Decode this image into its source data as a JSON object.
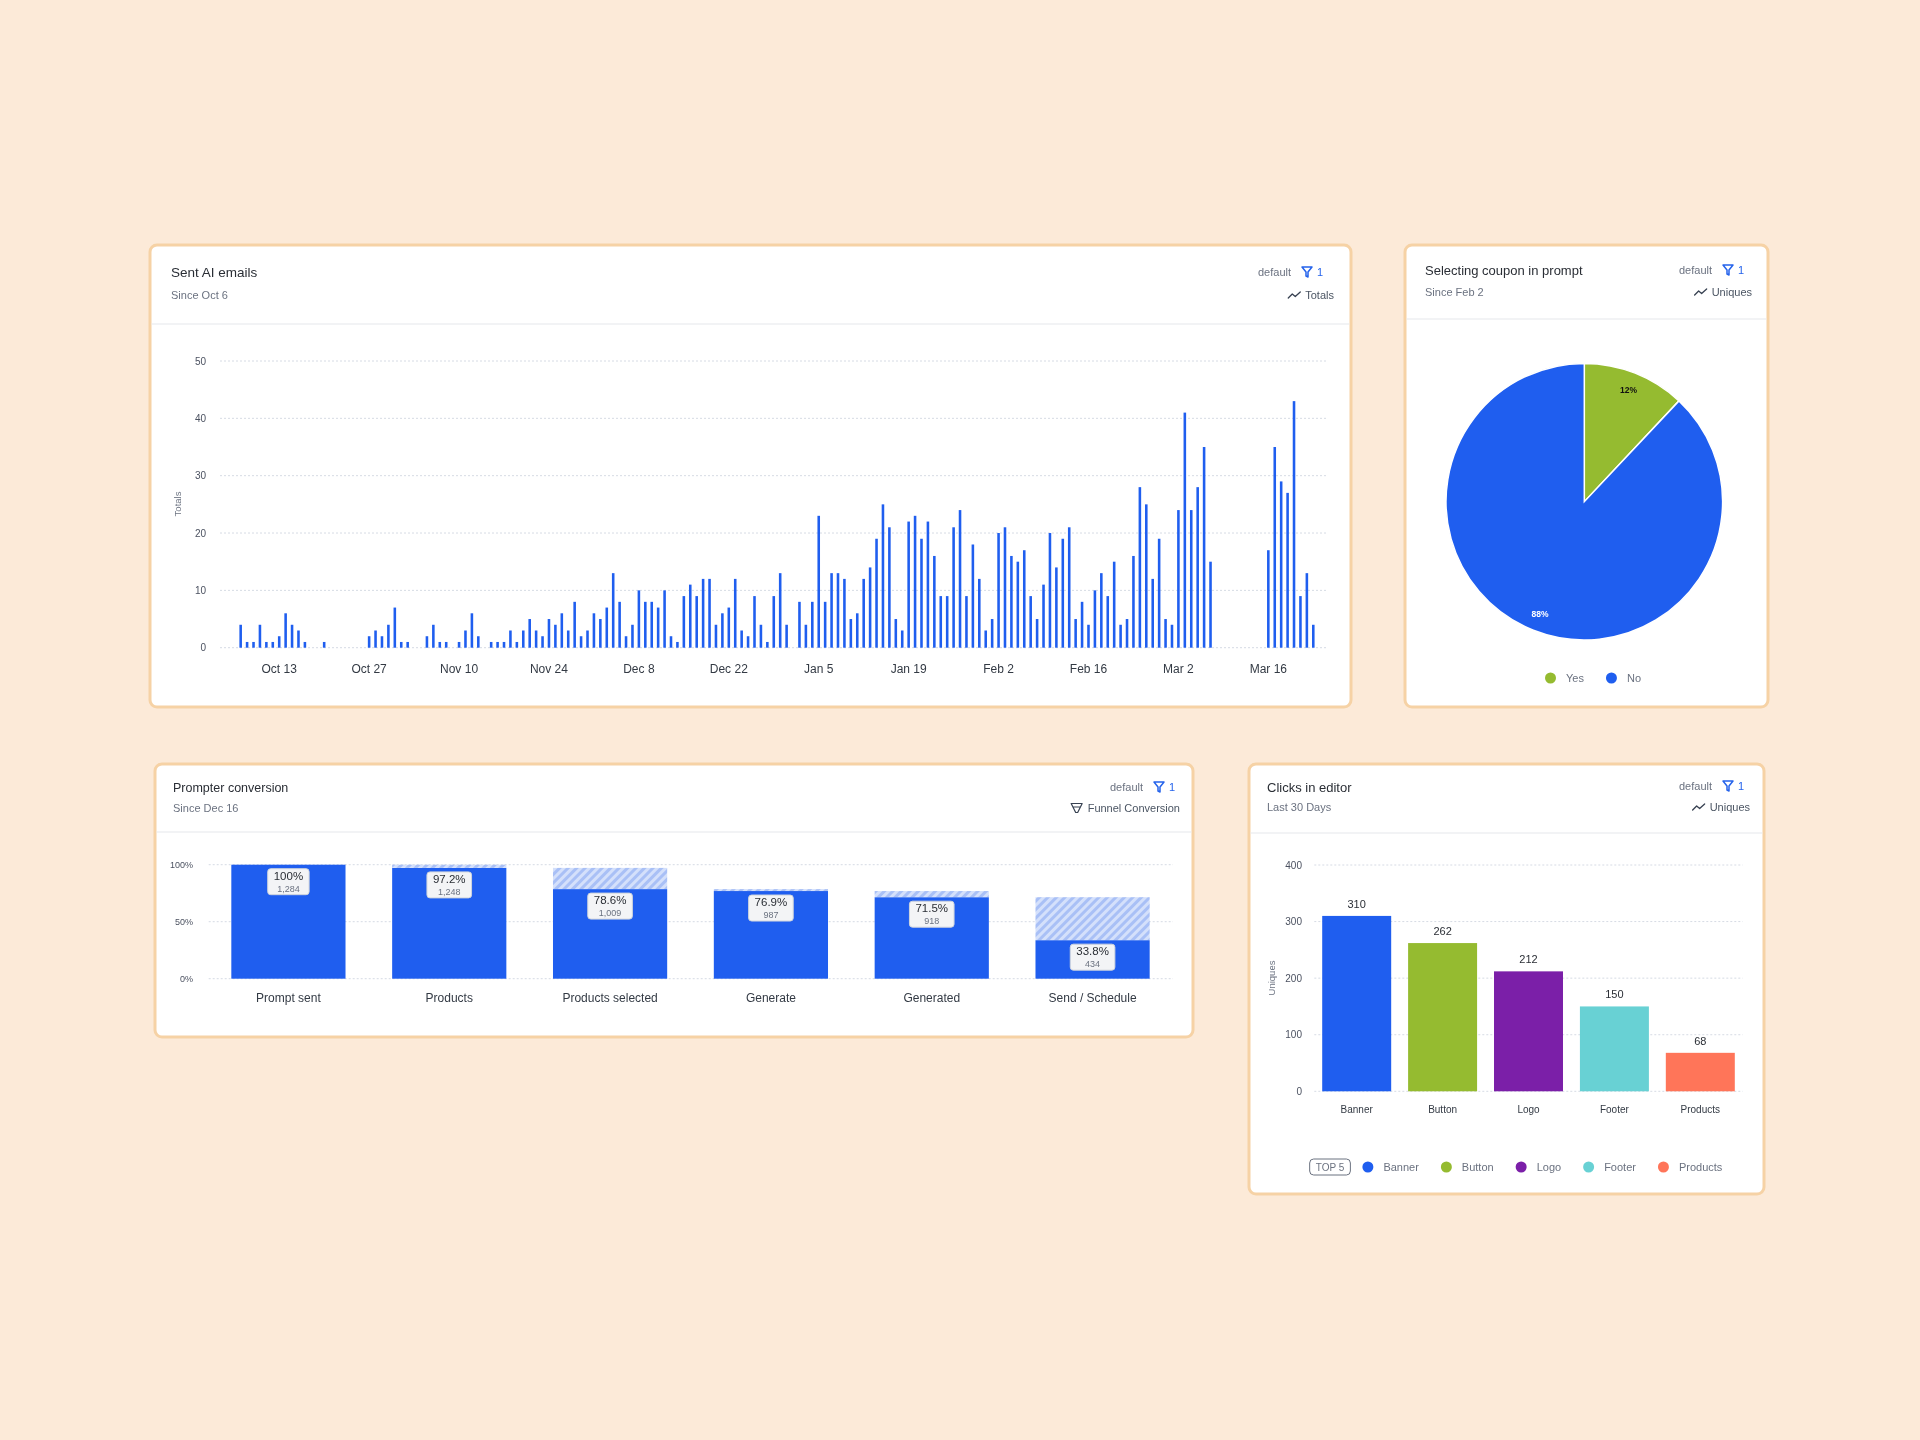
{
  "chart_data": [
    {
      "type": "bar",
      "title": "Sent AI emails",
      "subtitle": "Since Oct 6",
      "ylabel": "Totals",
      "annotations": [
        "default",
        "1",
        "Totals"
      ],
      "categories": [
        null,
        null,
        null,
        null,
        null,
        null,
        "Oct 13",
        null,
        null,
        null,
        null,
        null,
        null,
        null,
        null,
        null,
        null,
        null,
        null,
        null,
        "Oct 27",
        null,
        null,
        null,
        null,
        null,
        null,
        null,
        null,
        null,
        null,
        null,
        null,
        null,
        "Nov 10",
        null,
        null,
        null,
        null,
        null,
        null,
        null,
        null,
        null,
        null,
        null,
        null,
        null,
        "Nov 24",
        null,
        null,
        null,
        null,
        null,
        null,
        null,
        null,
        null,
        null,
        null,
        null,
        null,
        "Dec 8",
        null,
        null,
        null,
        null,
        null,
        null,
        null,
        null,
        null,
        null,
        null,
        null,
        null,
        "Dec 22",
        null,
        null,
        null,
        null,
        null,
        null,
        null,
        null,
        null,
        null,
        null,
        null,
        null,
        "Jan 5",
        null,
        null,
        null,
        null,
        null,
        null,
        null,
        null,
        null,
        null,
        null,
        null,
        null,
        "Jan 19",
        null,
        null,
        null,
        null,
        null,
        null,
        null,
        null,
        null,
        null,
        null,
        null,
        null,
        "Feb 2",
        null,
        null,
        null,
        null,
        null,
        null,
        null,
        null,
        null,
        null,
        null,
        null,
        null,
        "Feb 16",
        null,
        null,
        null,
        null,
        null,
        null,
        null,
        null,
        null,
        null,
        null,
        null,
        null,
        "Mar 2",
        null,
        null,
        null,
        null,
        null,
        null,
        null,
        null,
        null,
        null,
        null,
        null,
        null,
        "Mar 16",
        null,
        null,
        null,
        null,
        null,
        null,
        null
      ],
      "values": [
        4,
        1,
        1,
        4,
        1,
        1,
        2,
        6,
        4,
        3,
        1,
        null,
        null,
        1,
        null,
        null,
        null,
        null,
        null,
        null,
        2,
        3,
        2,
        4,
        7,
        1,
        1,
        null,
        null,
        2,
        4,
        1,
        1,
        null,
        1,
        3,
        6,
        2,
        null,
        1,
        1,
        1,
        3,
        1,
        3,
        5,
        3,
        2,
        5,
        4,
        6,
        3,
        8,
        2,
        3,
        6,
        5,
        7,
        13,
        8,
        2,
        4,
        10,
        8,
        8,
        7,
        10,
        2,
        1,
        9,
        11,
        9,
        12,
        12,
        4,
        6,
        7,
        12,
        3,
        2,
        9,
        4,
        1,
        9,
        13,
        4,
        null,
        8,
        4,
        8,
        23,
        8,
        13,
        13,
        12,
        5,
        6,
        12,
        14,
        19,
        25,
        21,
        5,
        3,
        22,
        23,
        19,
        22,
        16,
        9,
        9,
        21,
        24,
        9,
        18,
        12,
        3,
        5,
        20,
        21,
        16,
        15,
        17,
        9,
        5,
        11,
        20,
        14,
        19,
        21,
        5,
        8,
        4,
        10,
        13,
        9,
        15,
        4,
        5,
        16,
        28,
        25,
        12,
        19,
        5,
        4,
        24,
        41,
        24,
        28,
        35,
        15,
        null,
        null,
        null,
        null,
        null,
        null,
        null,
        null,
        17,
        35,
        29,
        27,
        43,
        9,
        13,
        4
      ],
      "color": "#1f5eef",
      "ylim": [
        0,
        50
      ],
      "yticks": [
        0,
        10,
        20,
        30,
        40,
        50
      ],
      "grid": "y"
    },
    {
      "type": "pie",
      "title": "Selecting coupon in prompt",
      "subtitle": "Since Feb 2",
      "annotations": [
        "default",
        "1",
        "Uniques"
      ],
      "categories": [
        "Yes",
        "No"
      ],
      "values": [
        12,
        88
      ],
      "colors": [
        "#95bb30",
        "#1f5eef"
      ],
      "value_labels": [
        "12%",
        "88%"
      ],
      "legend": "bottom"
    },
    {
      "type": "bar",
      "stacked": true,
      "title": "Prompter conversion",
      "subtitle": "Since Dec 16",
      "annotations": [
        "default",
        "1",
        "Funnel Conversion"
      ],
      "categories": [
        "Prompt sent",
        "Products",
        "Products selected",
        "Generate",
        "Generated",
        "Send / Schedule"
      ],
      "series": [
        {
          "color": "#1f5eef",
          "values": [
            100,
            97.2,
            78.6,
            76.9,
            71.5,
            33.8
          ],
          "value_labels": [
            "100%\n1,284",
            "97.2%\n1,248",
            "78.6%\n1,009",
            "76.9%\n987",
            "71.5%\n918",
            "33.8%\n434"
          ]
        },
        {
          "color": "#a9c0f6",
          "values": [
            null,
            2.8,
            18.6,
            1.7,
            5.4,
            37.7
          ]
        }
      ],
      "ylim": [
        0,
        100
      ],
      "yticks": [
        {
          "value": 0,
          "label": "0%"
        },
        {
          "value": 50,
          "label": "50%"
        },
        {
          "value": 100,
          "label": "100%"
        }
      ],
      "grid": "y"
    },
    {
      "type": "bar",
      "title": "Clicks in editor",
      "subtitle": "Last 30 Days",
      "annotations": [
        "default",
        "1",
        "Uniques"
      ],
      "ylabel": "Uniques",
      "categories": [
        "Banner",
        "Button",
        "Logo",
        "Footer",
        "Products"
      ],
      "series": [
        {
          "name": "Banner",
          "color": "#1f5eef",
          "values": [
            310,
            null,
            null,
            null,
            null
          ]
        },
        {
          "name": "Button",
          "color": "#95bb30",
          "values": [
            null,
            262,
            null,
            null,
            null
          ]
        },
        {
          "name": "Logo",
          "color": "#7b1fa8",
          "values": [
            null,
            null,
            212,
            null,
            null
          ]
        },
        {
          "name": "Footer",
          "color": "#68d1d4",
          "values": [
            null,
            null,
            null,
            150,
            null
          ]
        },
        {
          "name": "Products",
          "color": "#ff7559",
          "values": [
            null,
            null,
            null,
            null,
            68
          ]
        }
      ],
      "data_labels": true,
      "ylim": [
        0,
        400
      ],
      "yticks": [
        0,
        100,
        200,
        300,
        400
      ],
      "grid": "y",
      "legend": "bottom",
      "legend_title": "TOP 5"
    }
  ]
}
